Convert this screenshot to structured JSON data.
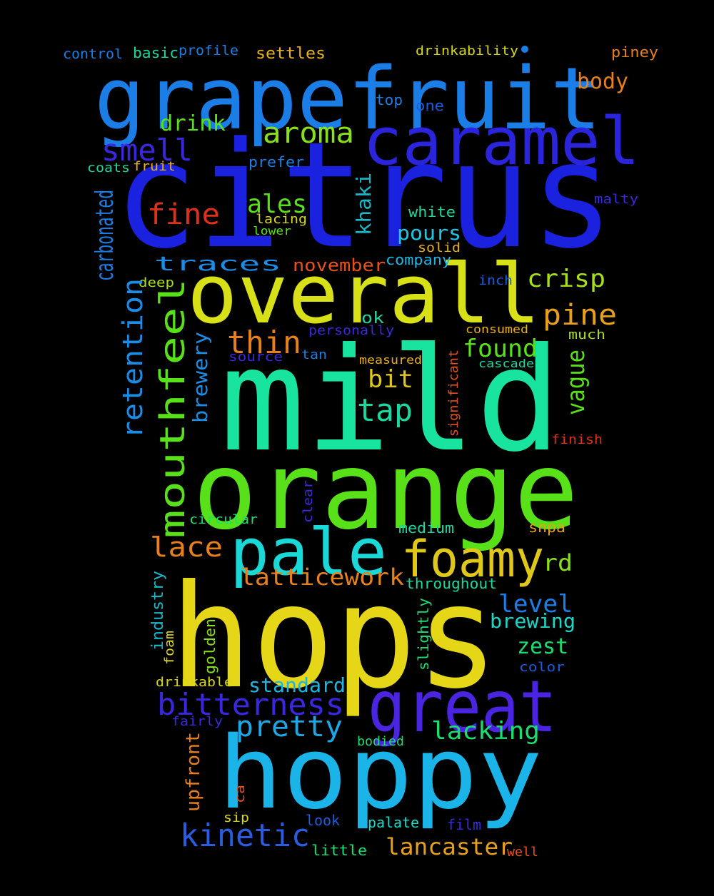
{
  "words": [
    {
      "text": "citrus",
      "color": "#1a22e0"
    },
    {
      "text": "mild",
      "color": "#18e4a0"
    },
    {
      "text": "hops",
      "color": "#e6d618"
    },
    {
      "text": "orange",
      "color": "#58e018"
    },
    {
      "text": "grapefruit",
      "color": "#1a7ee6"
    },
    {
      "text": "hoppy",
      "color": "#1ab4e8"
    },
    {
      "text": "overall",
      "color": "#d8e018"
    },
    {
      "text": "caramel",
      "color": "#2a24dc"
    },
    {
      "text": "great",
      "color": "#4a24e0"
    },
    {
      "text": "pale",
      "color": "#18d8d8"
    },
    {
      "text": "mouthfeel",
      "color": "#58e018"
    },
    {
      "text": "foamy",
      "color": "#e0c818"
    },
    {
      "text": "bitterness",
      "color": "#3a28e0"
    },
    {
      "text": "kinetic",
      "color": "#2a5ce0"
    },
    {
      "text": "aroma",
      "color": "#88e018"
    },
    {
      "text": "retention",
      "color": "#1a8ee6"
    },
    {
      "text": "smell",
      "color": "#3a28e0"
    },
    {
      "text": "pine",
      "color": "#e8a018"
    },
    {
      "text": "thin",
      "color": "#e8801a"
    },
    {
      "text": "tap",
      "color": "#18d8a0"
    },
    {
      "text": "pretty",
      "color": "#1aa8e6"
    },
    {
      "text": "lacking",
      "color": "#18e070"
    },
    {
      "text": "lancaster",
      "color": "#e8a018"
    },
    {
      "text": "latticework",
      "color": "#e8801a"
    },
    {
      "text": "lace",
      "color": "#e8801a"
    },
    {
      "text": "fine",
      "color": "#e03018"
    },
    {
      "text": "ales",
      "color": "#58e018"
    },
    {
      "text": "crisp",
      "color": "#a8e018"
    },
    {
      "text": "found",
      "color": "#58e018"
    },
    {
      "text": "vague",
      "color": "#58e018"
    },
    {
      "text": "traces",
      "color": "#1a8ee6"
    },
    {
      "text": "carbonated",
      "color": "#1a7ee6"
    },
    {
      "text": "level",
      "color": "#1a7ee6"
    },
    {
      "text": "brewing",
      "color": "#18d8c8"
    },
    {
      "text": "zest",
      "color": "#18e070"
    },
    {
      "text": "standard",
      "color": "#18b8e6"
    },
    {
      "text": "bit",
      "color": "#e0c818"
    },
    {
      "text": "drink",
      "color": "#58e018"
    },
    {
      "text": "body",
      "color": "#e8801a"
    },
    {
      "text": "pours",
      "color": "#1ac8e6"
    },
    {
      "text": "brewery",
      "color": "#1a8ee6"
    },
    {
      "text": "rd",
      "color": "#88e018"
    },
    {
      "text": "khaki",
      "color": "#18b8c8"
    },
    {
      "text": "november",
      "color": "#e8501a"
    },
    {
      "text": "upfront",
      "color": "#e8801a"
    },
    {
      "text": "settles",
      "color": "#e8b018"
    },
    {
      "text": "basic",
      "color": "#18d8a0"
    },
    {
      "text": "control",
      "color": "#1a7ee6"
    },
    {
      "text": "profile",
      "color": "#1a7ee6"
    },
    {
      "text": "drinkability",
      "color": "#d8d818"
    },
    {
      "text": "piney",
      "color": "#e8801a"
    },
    {
      "text": "top",
      "color": "#1a7ee6"
    },
    {
      "text": "one",
      "color": "#1a5ce0"
    },
    {
      "text": "coats",
      "color": "#18d8a0"
    },
    {
      "text": "fruit",
      "color": "#e8b018"
    },
    {
      "text": "prefer",
      "color": "#1a7ee6"
    },
    {
      "text": "malty",
      "color": "#3a28e0"
    },
    {
      "text": "lacing",
      "color": "#d8d818"
    },
    {
      "text": "lower",
      "color": "#58e018"
    },
    {
      "text": "white",
      "color": "#18d8a0"
    },
    {
      "text": "company",
      "color": "#18b8e6"
    },
    {
      "text": "solid",
      "color": "#e8b018"
    },
    {
      "text": "inch",
      "color": "#1a5ce0"
    },
    {
      "text": "deep",
      "color": "#a8e018"
    },
    {
      "text": "ok",
      "color": "#18d8a0"
    },
    {
      "text": "personally",
      "color": "#3a28e0"
    },
    {
      "text": "consumed",
      "color": "#e8b018"
    },
    {
      "text": "much",
      "color": "#a8e018"
    },
    {
      "text": "source",
      "color": "#3a28e0"
    },
    {
      "text": "tan",
      "color": "#1a7ee6"
    },
    {
      "text": "measured",
      "color": "#e8b018"
    },
    {
      "text": "cascade",
      "color": "#18d8a0"
    },
    {
      "text": "significant",
      "color": "#e8501a"
    },
    {
      "text": "finish",
      "color": "#e03018"
    },
    {
      "text": "clear",
      "color": "#3a28e0"
    },
    {
      "text": "circular",
      "color": "#18e070"
    },
    {
      "text": "medium",
      "color": "#18d8a0"
    },
    {
      "text": "snpa",
      "color": "#e8a018"
    },
    {
      "text": "throughout",
      "color": "#18d8a0"
    },
    {
      "text": "industry",
      "color": "#18b8c8"
    },
    {
      "text": "golden",
      "color": "#88e018"
    },
    {
      "text": "foam",
      "color": "#d8d818"
    },
    {
      "text": "slightly",
      "color": "#18e070"
    },
    {
      "text": "color",
      "color": "#1a5ce0"
    },
    {
      "text": "drinkable",
      "color": "#d8d818"
    },
    {
      "text": "fairly",
      "color": "#3a28e0"
    },
    {
      "text": "bodied",
      "color": "#18e070"
    },
    {
      "text": "ca",
      "color": "#e8501a"
    },
    {
      "text": "sip",
      "color": "#d8d818"
    },
    {
      "text": "look",
      "color": "#1a5ce0"
    },
    {
      "text": "palate",
      "color": "#18d8c8"
    },
    {
      "text": "film",
      "color": "#3a28e0"
    },
    {
      "text": "little",
      "color": "#18e070"
    },
    {
      "text": "well",
      "color": "#e8501a"
    }
  ]
}
